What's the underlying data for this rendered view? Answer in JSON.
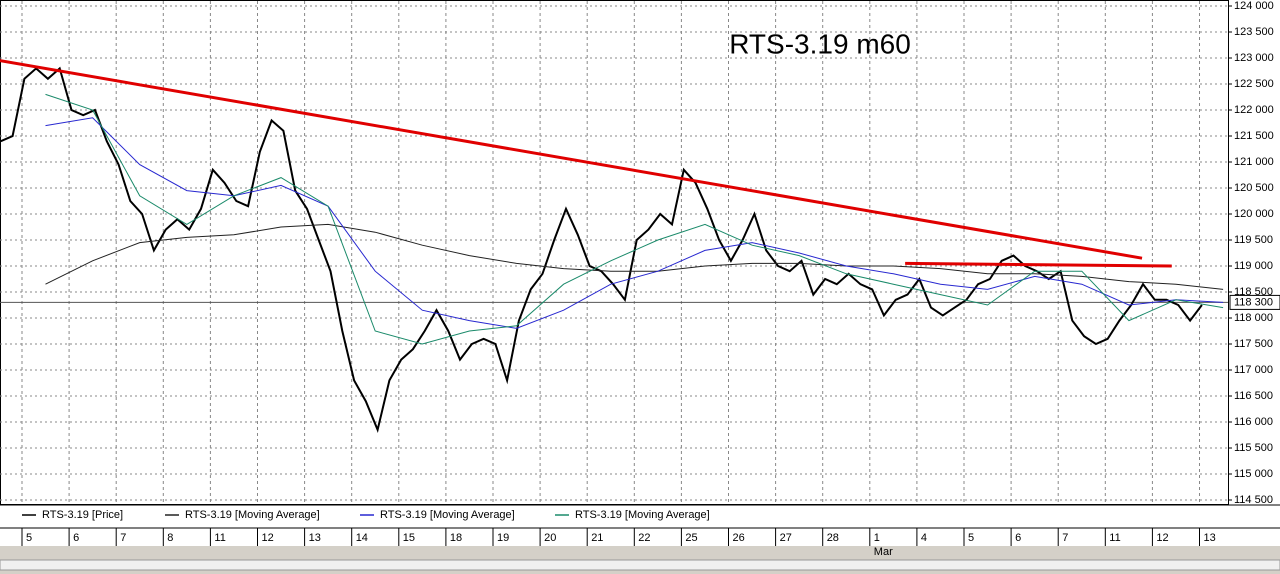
{
  "chart_data": {
    "type": "line",
    "title": "RTS-3.19 m60",
    "x": [
      -0.45,
      -0.2,
      0.05,
      0.3,
      0.55,
      0.8,
      1.05,
      1.3,
      1.55,
      1.8,
      2.05,
      2.3,
      2.55,
      2.8,
      3.05,
      3.3,
      3.55,
      3.8,
      4.05,
      4.3,
      4.55,
      4.8,
      5.05,
      5.3,
      5.55,
      5.8,
      6.05,
      6.3,
      6.55,
      6.8,
      7.05,
      7.3,
      7.55,
      7.8,
      8.05,
      8.3,
      8.55,
      8.8,
      9.05,
      9.3,
      9.55,
      9.8,
      10.05,
      10.3,
      10.55,
      10.8,
      11.05,
      11.3,
      11.55,
      11.8,
      12.05,
      12.3,
      12.55,
      12.8,
      13.05,
      13.3,
      13.55,
      13.8,
      14.05,
      14.3,
      14.55,
      14.8,
      15.05,
      15.3,
      15.55,
      15.8,
      16.05,
      16.3,
      16.55,
      16.8,
      17.05,
      17.3,
      17.55,
      17.8,
      18.05,
      18.3,
      18.55,
      18.8,
      19.05,
      19.3,
      19.55,
      19.8,
      20.05,
      20.3,
      20.55,
      20.8,
      21.05,
      21.3,
      21.55,
      21.8,
      22.05,
      22.3,
      22.55,
      22.8,
      23.05,
      23.3,
      23.55,
      23.8,
      24.05,
      24.3,
      24.55,
      24.8,
      25.05
    ],
    "series": [
      {
        "name": "RTS-3.19 [Price]",
        "color": "#000000",
        "values": [
          121400,
          121500,
          122600,
          122800,
          122600,
          122800,
          122000,
          121900,
          122000,
          121400,
          120950,
          120250,
          120000,
          119300,
          119700,
          119900,
          119700,
          120100,
          120850,
          120600,
          120250,
          120150,
          121200,
          121800,
          121600,
          120450,
          120100,
          119500,
          118900,
          117750,
          116800,
          116400,
          115850,
          116800,
          117200,
          117400,
          117750,
          118150,
          117750,
          117200,
          117500,
          117600,
          117500,
          116800,
          117950,
          118550,
          118850,
          119500,
          120100,
          119600,
          119000,
          118900,
          118650,
          118350,
          119500,
          119700,
          120000,
          119800,
          120850,
          120600,
          120100,
          119500,
          119100,
          119500,
          120000,
          119300,
          119000,
          118900,
          119100,
          118450,
          118750,
          118650,
          118850,
          118650,
          118550,
          118050,
          118350,
          118450,
          118750,
          118200,
          118050,
          118200,
          118350,
          118650,
          118750,
          119100,
          119200,
          119000,
          118900,
          118750,
          118900,
          117950,
          117650,
          117500,
          117600,
          117950,
          118250,
          118650,
          118350,
          118350,
          118250,
          117950,
          118250
        ]
      },
      {
        "name": "RTS-3.19 [Moving Average]",
        "color": "#222222",
        "x": [
          0.5,
          1.5,
          2.5,
          3.5,
          4.5,
          5.5,
          6.5,
          7.5,
          8.5,
          9.5,
          10.5,
          11.5,
          12.5,
          13.5,
          14.5,
          15.5,
          16.5,
          17.5,
          18.5,
          19.5,
          20.5,
          21.5,
          22.5,
          23.5,
          24.5,
          25.5
        ],
        "values": [
          118650,
          119100,
          119450,
          119550,
          119600,
          119750,
          119800,
          119650,
          119400,
          119200,
          119050,
          118950,
          118900,
          118900,
          119000,
          119050,
          119050,
          119000,
          119000,
          118950,
          118850,
          118850,
          118800,
          118700,
          118650,
          118550
        ]
      },
      {
        "name": "RTS-3.19 [Moving Average]",
        "color": "#2828d0",
        "x": [
          0.5,
          1.5,
          2.5,
          3.5,
          4.5,
          5.5,
          6.5,
          7.5,
          8.5,
          9.5,
          10.5,
          11.5,
          12.5,
          13.5,
          14.5,
          15.5,
          16.5,
          17.5,
          18.5,
          19.5,
          20.5,
          21.5,
          22.5,
          23.5,
          24.5,
          25.5
        ],
        "values": [
          121700,
          121850,
          120950,
          120450,
          120350,
          120550,
          120150,
          118900,
          118150,
          117950,
          117800,
          118150,
          118650,
          118900,
          119300,
          119450,
          119250,
          119000,
          118850,
          118650,
          118550,
          118800,
          118650,
          118250,
          118350,
          118300
        ]
      },
      {
        "name": "RTS-3.19 [Moving Average]",
        "color": "#1a8a6a",
        "x": [
          0.5,
          1.5,
          2.5,
          3.5,
          4.5,
          5.5,
          6.5,
          7.5,
          8.5,
          9.5,
          10.5,
          11.5,
          12.5,
          13.5,
          14.5,
          15.5,
          16.5,
          17.5,
          18.5,
          19.5,
          20.5,
          21.5,
          22.5,
          23.5,
          24.5,
          25.5
        ],
        "values": [
          122300,
          122000,
          120350,
          119800,
          120350,
          120700,
          120150,
          117750,
          117500,
          117750,
          117850,
          118650,
          119100,
          119500,
          119800,
          119400,
          119200,
          118850,
          118650,
          118450,
          118250,
          118900,
          118900,
          117950,
          118350,
          118200
        ]
      }
    ],
    "trendlines": [
      {
        "color": "#e00000",
        "x": [
          -0.47,
          23.78
        ],
        "y": [
          122950,
          119150
        ]
      },
      {
        "color": "#e00000",
        "x": [
          18.75,
          24.41
        ],
        "y": [
          119050,
          119000
        ]
      }
    ],
    "last_price": {
      "value": 118300,
      "label": "118 300"
    },
    "xlim": [
      -0.467,
      25.605
    ],
    "xticks": [
      {
        "value": 0,
        "label": "5"
      },
      {
        "value": 1,
        "label": "6"
      },
      {
        "value": 2,
        "label": "7"
      },
      {
        "value": 3,
        "label": "8"
      },
      {
        "value": 4,
        "label": "11"
      },
      {
        "value": 5,
        "label": "12"
      },
      {
        "value": 6,
        "label": "13"
      },
      {
        "value": 7,
        "label": "14"
      },
      {
        "value": 8,
        "label": "15"
      },
      {
        "value": 9,
        "label": "18"
      },
      {
        "value": 10,
        "label": "19"
      },
      {
        "value": 11,
        "label": "20"
      },
      {
        "value": 12,
        "label": "21"
      },
      {
        "value": 13,
        "label": "22"
      },
      {
        "value": 14,
        "label": "25"
      },
      {
        "value": 15,
        "label": "26"
      },
      {
        "value": 16,
        "label": "27"
      },
      {
        "value": 17,
        "label": "28"
      },
      {
        "value": 18,
        "label": "1"
      },
      {
        "value": 19,
        "label": "4"
      },
      {
        "value": 20,
        "label": "5"
      },
      {
        "value": 21,
        "label": "6"
      },
      {
        "value": 22,
        "label": "7"
      },
      {
        "value": 23,
        "label": "11"
      },
      {
        "value": 24,
        "label": "12"
      },
      {
        "value": 25,
        "label": "13"
      }
    ],
    "month_labels": [
      {
        "value": 18,
        "label": "Mar"
      }
    ],
    "ylim": [
      114500,
      124000
    ],
    "yticks": [
      {
        "value": 114500,
        "label": "114 500"
      },
      {
        "value": 115000,
        "label": "115 000"
      },
      {
        "value": 115500,
        "label": "115 500"
      },
      {
        "value": 116000,
        "label": "116 000"
      },
      {
        "value": 116500,
        "label": "116 500"
      },
      {
        "value": 117000,
        "label": "117 000"
      },
      {
        "value": 117500,
        "label": "117 500"
      },
      {
        "value": 118000,
        "label": "118 000"
      },
      {
        "value": 118500,
        "label": "118 500"
      },
      {
        "value": 119000,
        "label": "119 000"
      },
      {
        "value": 119500,
        "label": "119 500"
      },
      {
        "value": 120000,
        "label": "120 000"
      },
      {
        "value": 120500,
        "label": "120 500"
      },
      {
        "value": 121000,
        "label": "121 000"
      },
      {
        "value": 121500,
        "label": "121 500"
      },
      {
        "value": 122000,
        "label": "122 000"
      },
      {
        "value": 122500,
        "label": "122 500"
      },
      {
        "value": 123000,
        "label": "123 000"
      },
      {
        "value": 123500,
        "label": "123 500"
      },
      {
        "value": 124000,
        "label": "124 000"
      }
    ],
    "grid": true
  }
}
